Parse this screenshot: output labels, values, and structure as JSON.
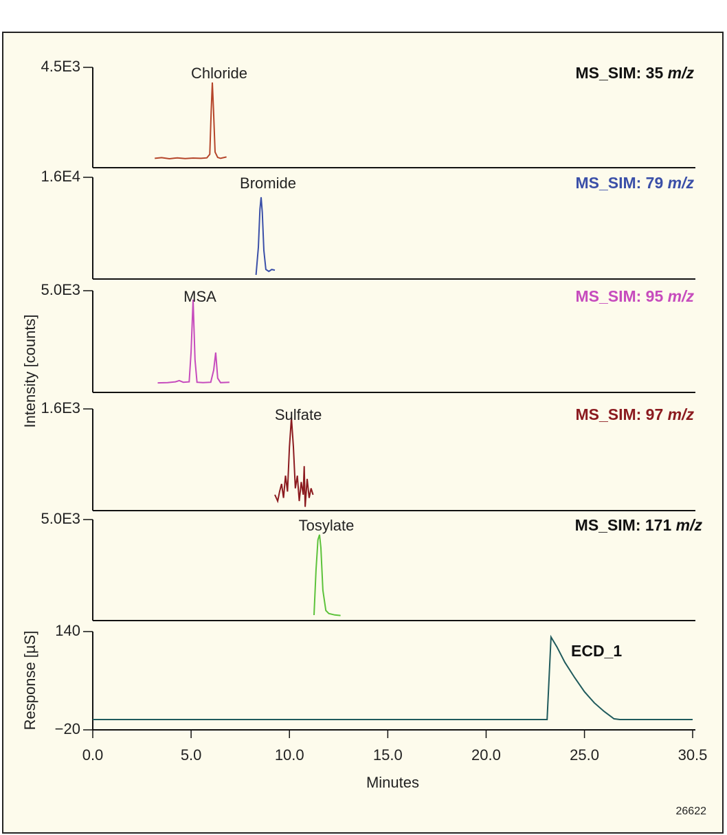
{
  "figure_id": "26622",
  "chart_data": [
    {
      "type": "line",
      "annotation": "Chloride",
      "label": "MS_SIM: 35",
      "label_unit": "m/z",
      "label_color": "#111111",
      "xlim": [
        0,
        30.5
      ],
      "ylim": [
        0,
        4500
      ],
      "yticks": [
        {
          "value": 4500,
          "label": "4.5E3"
        }
      ],
      "series": [
        {
          "name": "Chloride",
          "color": "#b5452a",
          "x": [
            3.15,
            3.5,
            3.9,
            4.3,
            4.7,
            5.1,
            5.5,
            5.8,
            5.95,
            6.02,
            6.08,
            6.14,
            6.22,
            6.35,
            6.5,
            6.8
          ],
          "values": [
            420,
            450,
            400,
            440,
            410,
            430,
            420,
            440,
            600,
            2500,
            3822,
            2600,
            700,
            460,
            420,
            480
          ]
        }
      ]
    },
    {
      "type": "line",
      "annotation": "Bromide",
      "label": "MS_SIM: 79",
      "label_unit": "m/z",
      "label_color": "#3a4fa8",
      "xlim": [
        0,
        30.5
      ],
      "ylim": [
        0,
        16000
      ],
      "yticks": [
        {
          "value": 16000,
          "label": "1.6E4"
        }
      ],
      "series": [
        {
          "name": "Bromide",
          "color": "#3a4fa8",
          "x": [
            8.3,
            8.42,
            8.5,
            8.56,
            8.62,
            8.7,
            8.8,
            8.95,
            9.1,
            9.26
          ],
          "values": [
            650,
            5000,
            11000,
            12865,
            10500,
            4500,
            1500,
            1200,
            1500,
            1400
          ]
        }
      ]
    },
    {
      "type": "line",
      "annotation": "MSA",
      "label": "MS_SIM: 95",
      "label_unit": "m/z",
      "label_color": "#c64bbd",
      "ylabel": "Intensity [counts]",
      "xlim": [
        0,
        30.5
      ],
      "ylim": [
        0,
        5000
      ],
      "yticks": [
        {
          "value": 5000,
          "label": "5.0E3"
        }
      ],
      "series": [
        {
          "name": "MSA",
          "color": "#c64bbd",
          "x": [
            3.3,
            3.8,
            4.2,
            4.4,
            4.6,
            4.9,
            5.0,
            5.1,
            5.2,
            5.3,
            5.6,
            6.0,
            6.15,
            6.25,
            6.35,
            6.5,
            6.95
          ],
          "values": [
            470,
            480,
            520,
            580,
            500,
            520,
            2000,
            4561,
            1600,
            500,
            480,
            500,
            1100,
            1960,
            700,
            480,
            500
          ]
        }
      ]
    },
    {
      "type": "line",
      "annotation": "Sulfate",
      "label": "MS_SIM: 97",
      "label_unit": "m/z",
      "label_color": "#8b1a1f",
      "xlim": [
        0,
        30.5
      ],
      "ylim": [
        0,
        1600
      ],
      "yticks": [
        {
          "value": 1600,
          "label": "1.6E3"
        }
      ],
      "series": [
        {
          "name": "Sulfate",
          "color": "#8b1a1f",
          "x": [
            9.26,
            9.4,
            9.5,
            9.6,
            9.7,
            9.8,
            9.9,
            10.0,
            10.1,
            10.2,
            10.3,
            10.4,
            10.5,
            10.6,
            10.7,
            10.75,
            10.8,
            10.9,
            11.0,
            11.1,
            11.2
          ],
          "values": [
            250,
            150,
            300,
            420,
            200,
            550,
            300,
            1000,
            1459,
            1000,
            350,
            550,
            150,
            450,
            250,
            700,
            60,
            500,
            200,
            350,
            250
          ]
        }
      ]
    },
    {
      "type": "line",
      "annotation": "Tosylate",
      "label": "MS_SIM: 171",
      "label_unit": "m/z",
      "label_color": "#111111",
      "xlim": [
        0,
        30.5
      ],
      "ylim": [
        0,
        5000
      ],
      "yticks": [
        {
          "value": 5000,
          "label": "5.0E3"
        }
      ],
      "series": [
        {
          "name": "Tosylate",
          "color": "#5cc23a",
          "x": [
            11.25,
            11.35,
            11.45,
            11.53,
            11.6,
            11.7,
            11.85,
            12.0,
            12.3,
            12.6
          ],
          "values": [
            272,
            2500,
            4000,
            4252,
            3600,
            1500,
            500,
            350,
            280,
            250
          ]
        }
      ]
    },
    {
      "type": "line",
      "label": "ECD_1",
      "label_color": "#111111",
      "ylabel": "Response [µS]",
      "xlabel": "Minutes",
      "xlim": [
        0,
        30.5
      ],
      "ylim": [
        -20,
        140
      ],
      "yticks": [
        {
          "value": -20,
          "label": "−20"
        },
        140
      ],
      "xticks": [
        {
          "value": 0,
          "label": "0.0"
        },
        {
          "value": 5,
          "label": "5.0"
        },
        {
          "value": 10,
          "label": "10.0"
        },
        {
          "value": 15,
          "label": "15.0"
        },
        {
          "value": 20,
          "label": "20.0"
        },
        {
          "value": 25,
          "label": "25.0"
        },
        {
          "value": 30.5,
          "label": "30.5"
        }
      ],
      "series": [
        {
          "name": "ECD_1",
          "color": "#1f5a5c",
          "x": [
            0,
            23.1,
            23.3,
            23.6,
            24.0,
            24.5,
            25.0,
            25.5,
            26.0,
            26.5,
            26.8,
            30.5
          ],
          "values": [
            -3.2,
            -3.2,
            131,
            115,
            90,
            65,
            42,
            24,
            10,
            -2,
            -3.2,
            -3.2
          ]
        }
      ]
    }
  ]
}
